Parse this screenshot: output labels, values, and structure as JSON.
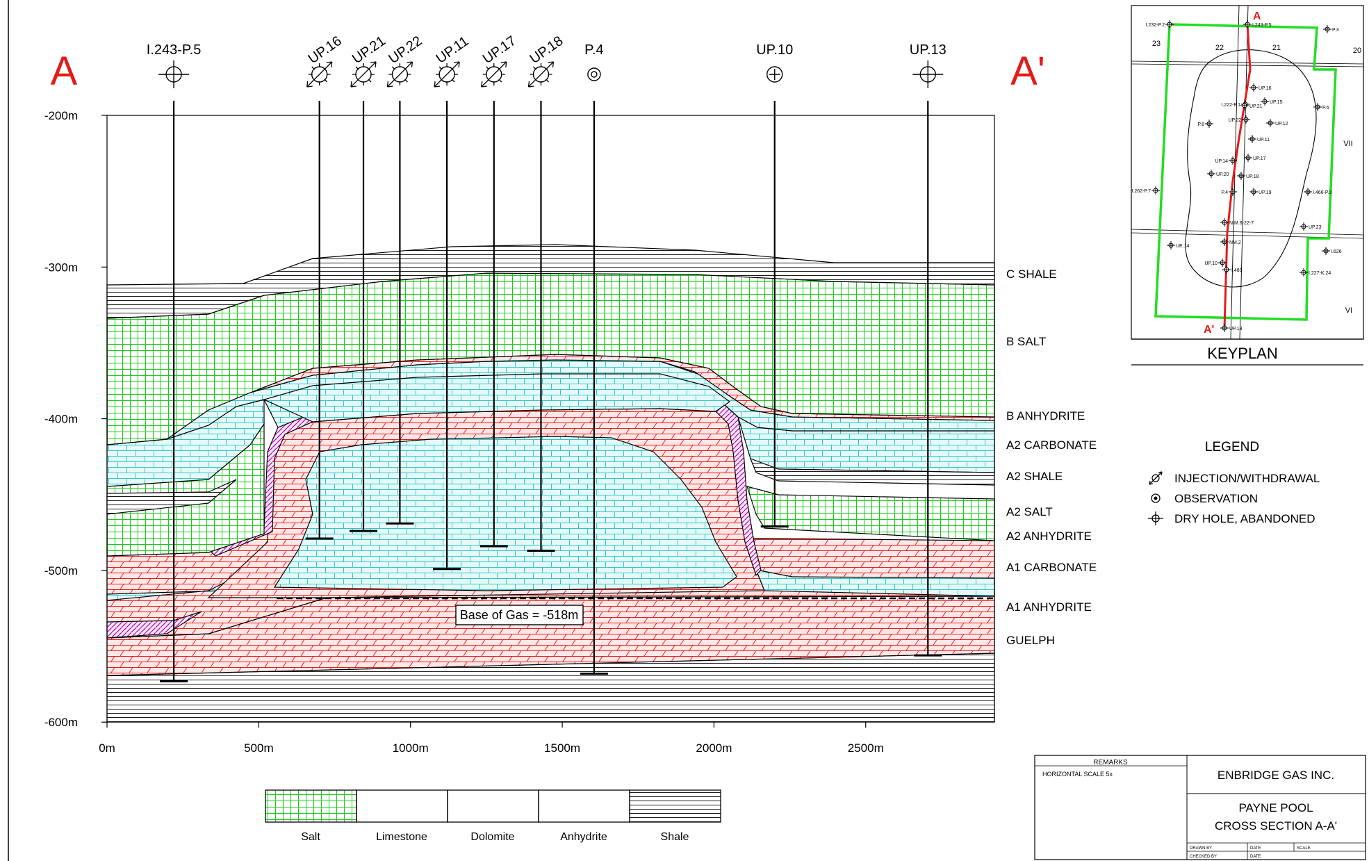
{
  "section_marks": {
    "left": "A",
    "right": "A'"
  },
  "wells": [
    {
      "id": "w1",
      "name": "I.243-P.5",
      "symbol": "dry-hole",
      "x": 220,
      "td": 573
    },
    {
      "id": "w2",
      "name": "UP.16",
      "symbol": "injection",
      "x": 700,
      "td": 479
    },
    {
      "id": "w3",
      "name": "UP.21",
      "symbol": "injection",
      "x": 845,
      "td": 474
    },
    {
      "id": "w4",
      "name": "UP.22",
      "symbol": "injection",
      "x": 965,
      "td": 469
    },
    {
      "id": "w5",
      "name": "UP.11",
      "symbol": "injection",
      "x": 1120,
      "td": 499
    },
    {
      "id": "w6",
      "name": "UP.17",
      "symbol": "injection",
      "x": 1275,
      "td": 484
    },
    {
      "id": "w7",
      "name": "UP.18",
      "symbol": "injection",
      "x": 1430,
      "td": 487
    },
    {
      "id": "w8",
      "name": "P.4",
      "symbol": "observation",
      "x": 1605,
      "td": 568
    },
    {
      "id": "w9",
      "name": "UP.10",
      "symbol": "injection-plus",
      "x": 2200,
      "td": 471
    },
    {
      "id": "w10",
      "name": "UP.13",
      "symbol": "dry-hole",
      "x": 2705,
      "td": 556
    }
  ],
  "axes": {
    "depth_ticks": [
      "-200m",
      "-300m",
      "-400m",
      "-500m",
      "-600m"
    ],
    "distance_ticks": [
      "0m",
      "500m",
      "1000m",
      "1500m",
      "2000m",
      "2500m"
    ],
    "horizontal_scale_note": "HORIZONTAL SCALE 5x"
  },
  "formations": [
    "C SHALE",
    "B SALT",
    "B ANHYDRITE",
    "A2 CARBONATE",
    "A2 SHALE",
    "A2 SALT",
    "A2 ANHYDRITE",
    "A1 CARBONATE",
    "A1 ANHYDRITE",
    "GUELPH"
  ],
  "base_of_gas_label": "Base of Gas = -518m",
  "lithology_key": [
    {
      "name": "Salt",
      "pattern": "salt"
    },
    {
      "name": "Limestone",
      "pattern": "limestone"
    },
    {
      "name": "Dolomite",
      "pattern": "dolomite"
    },
    {
      "name": "Anhydrite",
      "pattern": "anhydrite"
    },
    {
      "name": "Shale",
      "pattern": "shale"
    }
  ],
  "legend": {
    "title": "LEGEND",
    "items": [
      {
        "label": "INJECTION/WITHDRAWAL",
        "icon": "injection-icon"
      },
      {
        "label": "OBSERVATION",
        "icon": "observation-icon"
      },
      {
        "label": "DRY HOLE, ABANDONED",
        "icon": "dry-hole-icon"
      }
    ]
  },
  "keyplan": {
    "title": "KEYPLAN",
    "lots": [
      "23",
      "22",
      "21",
      "20",
      "VII",
      "VI"
    ],
    "line_marks": [
      "A",
      "A'"
    ],
    "wells": [
      "I.232-P.2",
      "I.243-P.5",
      "P.3",
      "UP.16",
      "UP.15",
      "I.222-P.1",
      "UP.21",
      "P.6",
      "UP.12",
      "P.8",
      "UP.22",
      "UP.11",
      "UP.14",
      "UP.17",
      "UP.20",
      "UP.18",
      "I.262-P.7",
      "P.4",
      "UP.19",
      "I.466-P.9",
      "NIM.6-22-7",
      "UP.23",
      "UE.14",
      "NM.2",
      "I.626",
      "UP.10",
      "I.489",
      "I.227-K.24",
      "UP.13"
    ]
  },
  "title_block": {
    "remarks_label": "REMARKS",
    "company": "ENBRIDGE GAS INC.",
    "title_line1": "PAYNE POOL",
    "title_line2": "CROSS SECTION A-A'",
    "small_labels": [
      "DRAWN BY",
      "DATE",
      "SCALE",
      "CHECKED BY",
      "DATE"
    ]
  },
  "colors": {
    "salt": "#16cc16",
    "limestone": "#2fc8c8",
    "dolomite": "#e81c1c",
    "anhydrite": "#b000b0",
    "section_letter": "#e21b1b",
    "keyplan_boundary": "#22dd22",
    "keyplan_line": "#e21b1b"
  }
}
